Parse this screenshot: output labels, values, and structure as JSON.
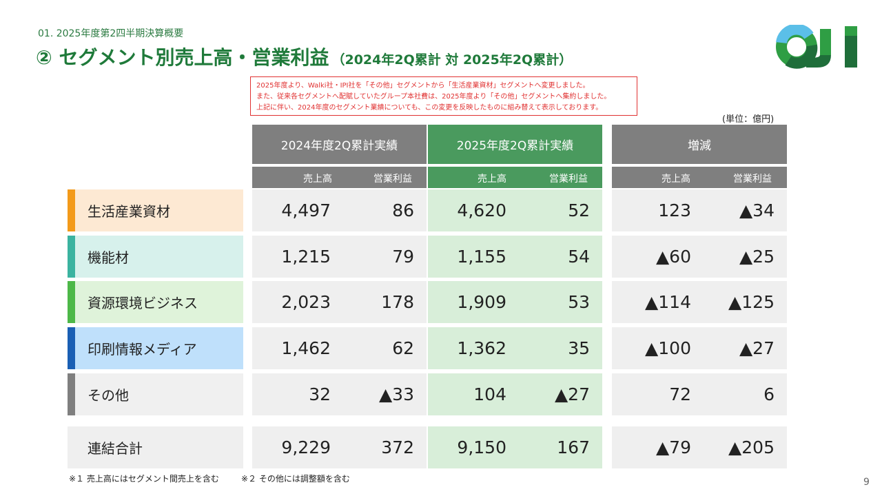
{
  "header": {
    "section": "01. 2025年度第2四半期決算概要",
    "title": "② セグメント別売上高・営業利益",
    "title_sub": "（2024年2Q累計 対 2025年2Q累計）"
  },
  "logo": {
    "text": "OJI",
    "colors": [
      "#2f9e44",
      "#1f6e3a",
      "#5bbfe8"
    ]
  },
  "notice": {
    "lines": [
      "2025年度より、Walki社・IPI社を「その他」セグメントから「生活産業資材」セグメントへ変更しました。",
      "また、従来各セグメントへ配賦していたグループ本社費は、2025年度より「その他」セグメントへ集約しました。",
      "上記に伴い、2024年度のセグメント業績についても、この変更を反映したものに組み替えて表示しております。"
    ]
  },
  "unit": "(単位：億円)",
  "table": {
    "groups": [
      "2024年度2Q累計実績",
      "2025年度2Q累計実績",
      "増減"
    ],
    "sub_headers": [
      "売上高",
      "営業利益"
    ],
    "rows": [
      {
        "label": "生活産業資材",
        "vals": [
          "4,497",
          "86",
          "4,620",
          "52",
          "123",
          "▲34"
        ]
      },
      {
        "label": "機能材",
        "vals": [
          "1,215",
          "79",
          "1,155",
          "54",
          "▲60",
          "▲25"
        ]
      },
      {
        "label": "資源環境ビジネス",
        "vals": [
          "2,023",
          "178",
          "1,909",
          "53",
          "▲114",
          "▲125"
        ]
      },
      {
        "label": "印刷情報メディア",
        "vals": [
          "1,462",
          "62",
          "1,362",
          "35",
          "▲100",
          "▲27"
        ]
      },
      {
        "label": "その他",
        "vals": [
          "32",
          "▲33",
          "104",
          "▲27",
          "72",
          "6"
        ]
      }
    ],
    "total": {
      "label": "連結合計",
      "vals": [
        "9,229",
        "372",
        "9,150",
        "167",
        "▲79",
        "▲205"
      ]
    }
  },
  "footnotes": [
    "※１ 売上高にはセグメント間売上を含む",
    "※２ その他には調整額を含む"
  ],
  "page_number": "9",
  "colors": {
    "green_title": "#1f7a3a",
    "gray_header": "#7f7f7f",
    "green_header": "#4a9a5e",
    "green_cell": "#d8eed9",
    "gray_cell": "#efefef",
    "row_bars": [
      "#f39a1a",
      "#3bb3a0",
      "#4db848",
      "#1a5fb4",
      "#7f7f7f"
    ],
    "row_bgs": [
      "#fde9d3",
      "#d7f1ec",
      "#dff3da",
      "#bfe0fb",
      "#f0f0f0"
    ]
  }
}
